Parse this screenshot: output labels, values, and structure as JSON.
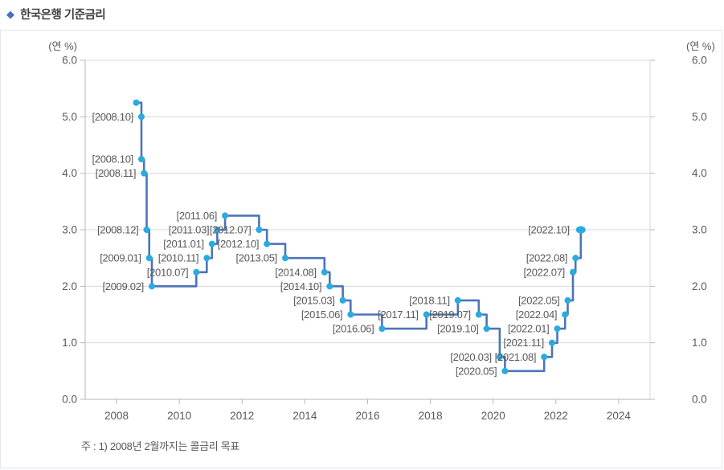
{
  "page": {
    "title": "한국은행 기준금리",
    "note": "주 : 1) 2008년 2월까지는 콜금리 목표"
  },
  "chart_data": {
    "type": "line",
    "step": true,
    "title": "한국은행 기준금리",
    "unit_label_left": "(연 %)",
    "unit_label_right": "(연 %)",
    "ylabel": "(연 %)",
    "xlabel": "",
    "ylim": [
      0.0,
      6.0
    ],
    "xlim": [
      2007,
      2025
    ],
    "yticks": [
      6.0,
      5.0,
      4.0,
      3.0,
      2.0,
      1.0,
      0.0
    ],
    "xticks": [
      "2008",
      "2010",
      "2012",
      "2014",
      "2016",
      "2018",
      "2020",
      "2022",
      "2024"
    ],
    "grid": "horizontal",
    "legend": "none",
    "colors": {
      "line": "#4d74b8",
      "marker": "#29abe2",
      "grid": "#d9d9d9",
      "axis": "#b7b7b7",
      "tick_text": "#595959",
      "label_text": "#595959",
      "title_text": "#3f3f3f",
      "diamond": "#4472c4"
    },
    "series": [
      {
        "name": "한국은행 기준금리",
        "points": [
          {
            "date": "2008.08",
            "value": 5.25,
            "label": ""
          },
          {
            "date": "2008.10",
            "value": 5.0,
            "label": "[2008.10]"
          },
          {
            "date": "2008.10",
            "value": 4.25,
            "label": "[2008.10]"
          },
          {
            "date": "2008.11",
            "value": 4.0,
            "label": "[2008.11]"
          },
          {
            "date": "2008.12",
            "value": 3.0,
            "label": "[2008.12]"
          },
          {
            "date": "2009.01",
            "value": 2.5,
            "label": "[2009.01]"
          },
          {
            "date": "2009.02",
            "value": 2.0,
            "label": "[2009.02]"
          },
          {
            "date": "2010.07",
            "value": 2.25,
            "label": "[2010.07]"
          },
          {
            "date": "2010.11",
            "value": 2.5,
            "label": "[2010.11]"
          },
          {
            "date": "2011.01",
            "value": 2.75,
            "label": "[2011.01]"
          },
          {
            "date": "2011.03",
            "value": 3.0,
            "label": "[2011.03]"
          },
          {
            "date": "2011.06",
            "value": 3.25,
            "label": "[2011.06]"
          },
          {
            "date": "2012.07",
            "value": 3.0,
            "label": "[2012.07]"
          },
          {
            "date": "2012.10",
            "value": 2.75,
            "label": "[2012.10]"
          },
          {
            "date": "2013.05",
            "value": 2.5,
            "label": "[2013.05]"
          },
          {
            "date": "2014.08",
            "value": 2.25,
            "label": "[2014.08]"
          },
          {
            "date": "2014.10",
            "value": 2.0,
            "label": "[2014.10]"
          },
          {
            "date": "2015.03",
            "value": 1.75,
            "label": "[2015.03]"
          },
          {
            "date": "2015.06",
            "value": 1.5,
            "label": "[2015.06]"
          },
          {
            "date": "2016.06",
            "value": 1.25,
            "label": "[2016.06]"
          },
          {
            "date": "2017.11",
            "value": 1.5,
            "label": "[2017.11]"
          },
          {
            "date": "2018.11",
            "value": 1.75,
            "label": "[2018.11]"
          },
          {
            "date": "2019.07",
            "value": 1.5,
            "label": "[2019.07]"
          },
          {
            "date": "2019.10",
            "value": 1.25,
            "label": "[2019.10]"
          },
          {
            "date": "2020.03",
            "value": 0.75,
            "label": "[2020.03]"
          },
          {
            "date": "2020.05",
            "value": 0.5,
            "label": "[2020.05]"
          },
          {
            "date": "2021.08",
            "value": 0.75,
            "label": "[2021.08]"
          },
          {
            "date": "2021.11",
            "value": 1.0,
            "label": "[2021.11]"
          },
          {
            "date": "2022.01",
            "value": 1.25,
            "label": "[2022.01]"
          },
          {
            "date": "2022.04",
            "value": 1.5,
            "label": "[2022.04]"
          },
          {
            "date": "2022.05",
            "value": 1.75,
            "label": "[2022.05]"
          },
          {
            "date": "2022.07",
            "value": 2.25,
            "label": "[2022.07]"
          },
          {
            "date": "2022.08",
            "value": 2.5,
            "label": "[2022.08]"
          },
          {
            "date": "2022.10",
            "value": 3.0,
            "label": "[2022.10]"
          }
        ]
      }
    ]
  }
}
